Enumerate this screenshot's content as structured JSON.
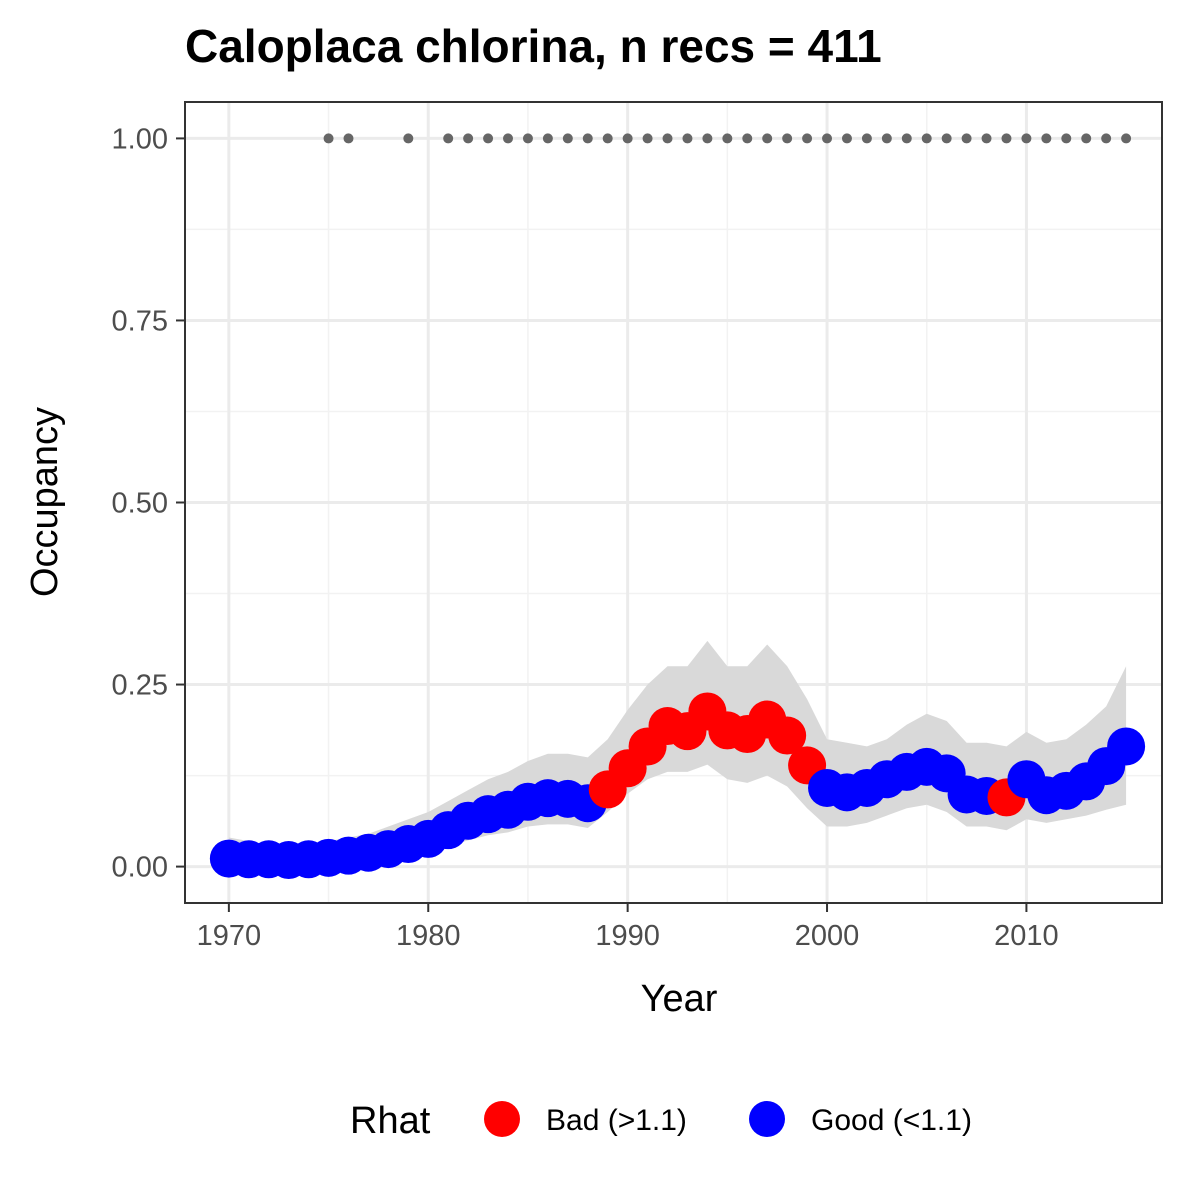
{
  "chart_data": {
    "type": "scatter",
    "title": "Caloplaca chlorina, n recs = 411",
    "xlabel": "Year",
    "ylabel": "Occupancy",
    "xlim": [
      1967.8,
      2016.8
    ],
    "ylim": [
      -0.05,
      1.05
    ],
    "x_ticks": [
      1970,
      1980,
      1990,
      2000,
      2010
    ],
    "x_tick_labels": [
      "1970",
      "1980",
      "1990",
      "2000",
      "2010"
    ],
    "y_ticks": [
      0.0,
      0.25,
      0.5,
      0.75,
      1.0
    ],
    "y_tick_labels": [
      "0.00",
      "0.25",
      "0.50",
      "0.75",
      "1.00"
    ],
    "grid": true,
    "colors": {
      "bad": "#ff0000",
      "good": "#0000ff",
      "ribbon": "#d9d9d9",
      "records": "#666666"
    },
    "legend": {
      "title": "Rhat",
      "position": "bottom",
      "items": [
        {
          "key": "bad",
          "label": "Bad (>1.1)"
        },
        {
          "key": "good",
          "label": "Good (<1.1)"
        }
      ]
    },
    "series": [
      {
        "name": "Occupancy",
        "x": [
          1970,
          1971,
          1972,
          1973,
          1974,
          1975,
          1976,
          1977,
          1978,
          1979,
          1980,
          1981,
          1982,
          1983,
          1984,
          1985,
          1986,
          1987,
          1988,
          1989,
          1990,
          1991,
          1992,
          1993,
          1994,
          1995,
          1996,
          1997,
          1998,
          1999,
          2000,
          2001,
          2002,
          2003,
          2004,
          2005,
          2006,
          2007,
          2008,
          2009,
          2010,
          2011,
          2012,
          2013,
          2014,
          2015
        ],
        "y": [
          0.011,
          0.01,
          0.01,
          0.009,
          0.01,
          0.012,
          0.015,
          0.019,
          0.024,
          0.031,
          0.038,
          0.05,
          0.063,
          0.072,
          0.078,
          0.089,
          0.094,
          0.093,
          0.087,
          0.106,
          0.135,
          0.165,
          0.193,
          0.186,
          0.213,
          0.187,
          0.182,
          0.202,
          0.18,
          0.139,
          0.108,
          0.102,
          0.108,
          0.12,
          0.13,
          0.137,
          0.128,
          0.099,
          0.097,
          0.095,
          0.12,
          0.098,
          0.104,
          0.117,
          0.138,
          0.165
        ],
        "rhat": [
          "good",
          "good",
          "good",
          "good",
          "good",
          "good",
          "good",
          "good",
          "good",
          "good",
          "good",
          "good",
          "good",
          "good",
          "good",
          "good",
          "good",
          "good",
          "good",
          "bad",
          "bad",
          "bad",
          "bad",
          "bad",
          "bad",
          "bad",
          "bad",
          "bad",
          "bad",
          "bad",
          "good",
          "good",
          "good",
          "good",
          "good",
          "good",
          "good",
          "good",
          "good",
          "bad",
          "good",
          "good",
          "good",
          "good",
          "good",
          "good"
        ],
        "lower": [
          0.0,
          0.0,
          0.0,
          0.0,
          0.0,
          0.0,
          0.003,
          0.006,
          0.01,
          0.015,
          0.02,
          0.028,
          0.036,
          0.043,
          0.047,
          0.055,
          0.058,
          0.058,
          0.053,
          0.075,
          0.1,
          0.12,
          0.13,
          0.13,
          0.14,
          0.12,
          0.115,
          0.125,
          0.11,
          0.08,
          0.055,
          0.055,
          0.06,
          0.07,
          0.08,
          0.085,
          0.075,
          0.055,
          0.055,
          0.05,
          0.065,
          0.06,
          0.065,
          0.07,
          0.078,
          0.085
        ],
        "upper": [
          0.04,
          0.035,
          0.03,
          0.028,
          0.03,
          0.035,
          0.04,
          0.045,
          0.055,
          0.065,
          0.075,
          0.09,
          0.105,
          0.12,
          0.13,
          0.145,
          0.155,
          0.155,
          0.15,
          0.175,
          0.215,
          0.25,
          0.275,
          0.275,
          0.31,
          0.275,
          0.275,
          0.305,
          0.275,
          0.23,
          0.175,
          0.17,
          0.165,
          0.175,
          0.195,
          0.21,
          0.2,
          0.17,
          0.17,
          0.165,
          0.185,
          0.17,
          0.175,
          0.195,
          0.22,
          0.275
        ]
      },
      {
        "name": "Records",
        "x": [
          1975,
          1976,
          1979,
          1981,
          1982,
          1983,
          1984,
          1985,
          1986,
          1987,
          1988,
          1989,
          1990,
          1991,
          1992,
          1993,
          1994,
          1995,
          1996,
          1997,
          1998,
          1999,
          2000,
          2001,
          2002,
          2003,
          2004,
          2005,
          2006,
          2007,
          2008,
          2009,
          2010,
          2011,
          2012,
          2013,
          2014,
          2015
        ],
        "y": 1.0
      }
    ]
  }
}
